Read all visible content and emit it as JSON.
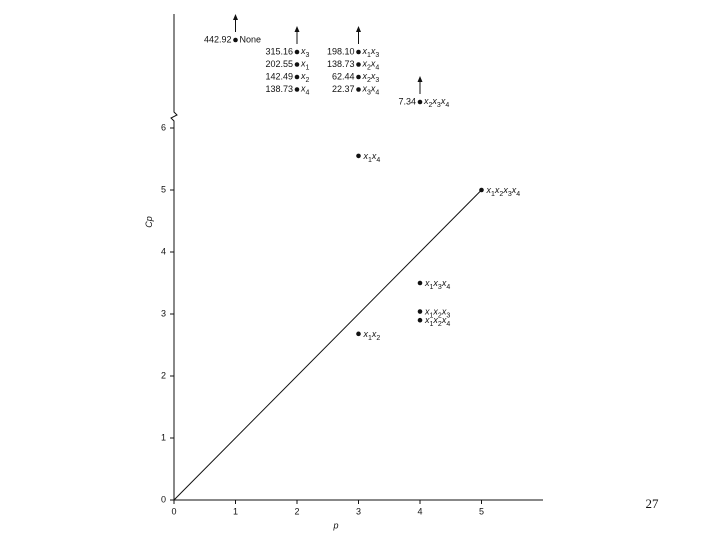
{
  "chart_data": {
    "type": "scatter",
    "x_label": "p",
    "y_label": "Cp",
    "xlim": [
      0,
      6
    ],
    "ylim": [
      0,
      6
    ],
    "xticks": [
      0,
      1,
      2,
      3,
      4,
      5
    ],
    "yticks": [
      0,
      1,
      2,
      3,
      4,
      5,
      6
    ],
    "reference_line": {
      "x": [
        0,
        5
      ],
      "values": [
        0,
        5
      ]
    },
    "points": {
      "x": [
        3,
        5,
        4,
        4,
        4,
        3
      ],
      "values": [
        5.55,
        5,
        3.5,
        3.04,
        2.9,
        2.68
      ],
      "labels": [
        "x1x4",
        "x1x2x3x4",
        "x1x3x4",
        "x1x2x3",
        "x1x2x4",
        "x1x2"
      ]
    },
    "off_scale": {
      "x": [
        1,
        2,
        2,
        2,
        2,
        3,
        3,
        3,
        3,
        4
      ],
      "values": [
        442.92,
        315.16,
        202.55,
        142.49,
        138.73,
        198.1,
        138.73,
        62.44,
        22.37,
        7.34
      ],
      "value_labels": [
        "442.92",
        "315.16",
        "202.55",
        "142.49",
        "138.73",
        "198.10",
        "138.73",
        "62.44",
        "22.37",
        "7.34"
      ],
      "labels": [
        "None",
        "x3",
        "x1",
        "x2",
        "x4",
        "x1x3",
        "x2x4",
        "x2x3",
        "x3x4",
        "x2x3x4"
      ]
    }
  },
  "page_number": 27
}
